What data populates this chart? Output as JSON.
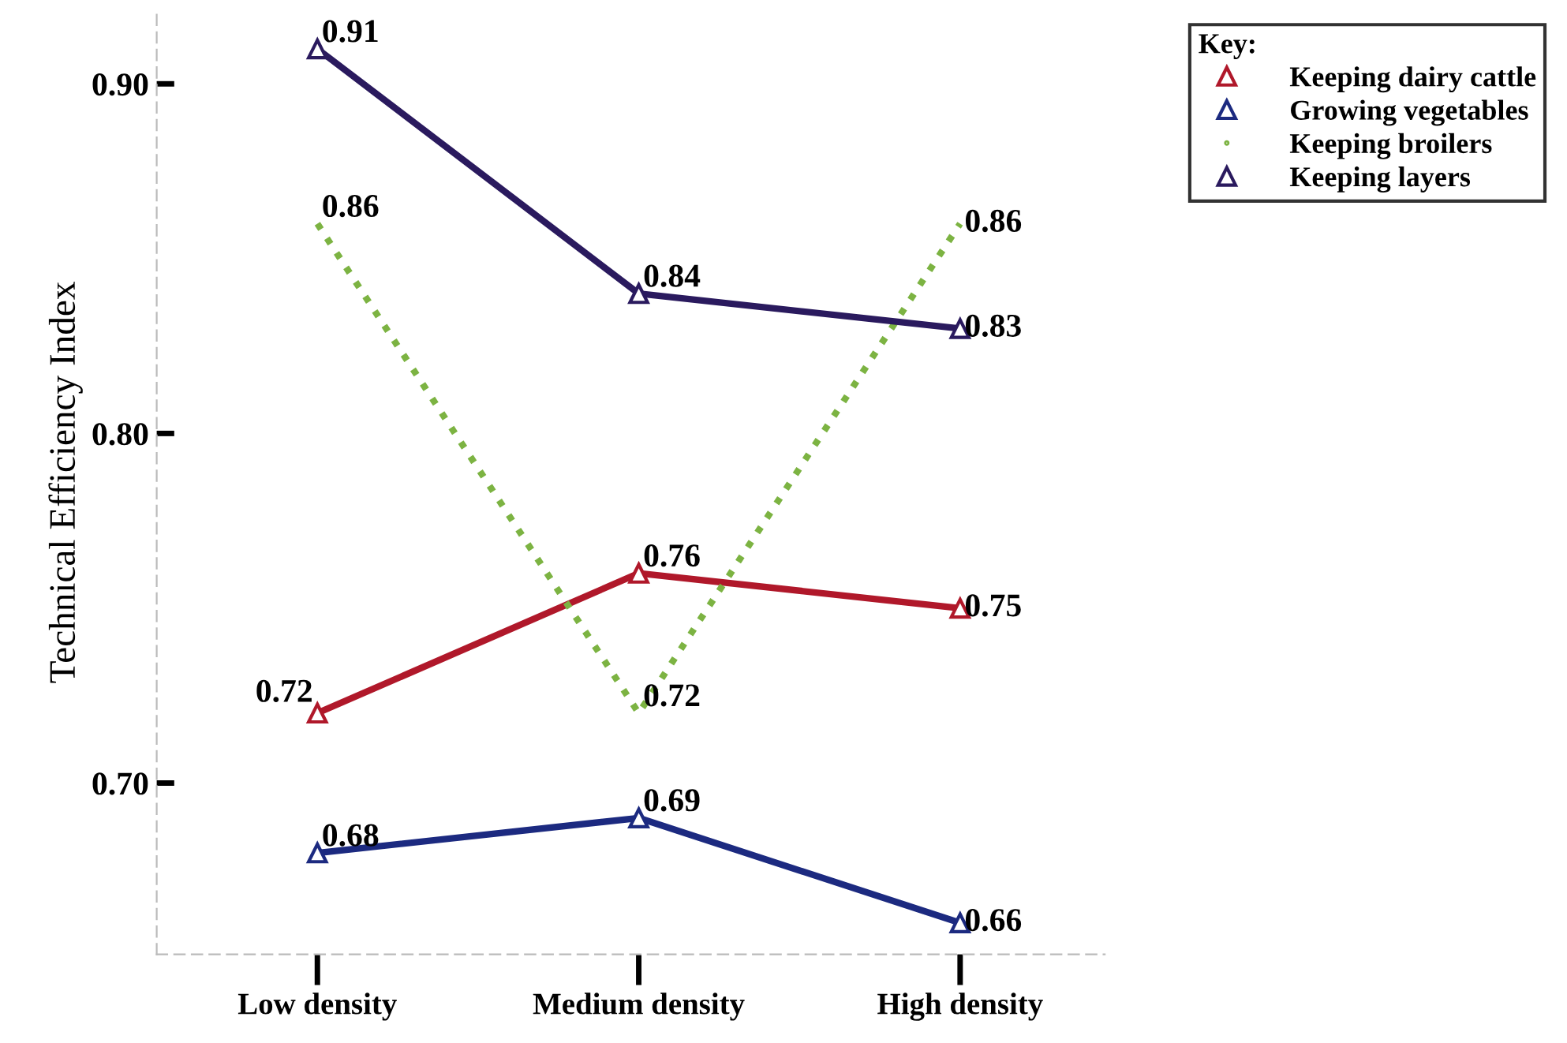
{
  "chart_data": {
    "type": "line",
    "ylabel": "Technical Efficiency Index",
    "legend_title": "Key:",
    "categories": [
      "Low density",
      "Medium density",
      "High density"
    ],
    "series": [
      {
        "name": "Keeping dairy cattle",
        "color": "#b0182a",
        "values": [
          0.72,
          0.76,
          0.75
        ],
        "marker": "triangle",
        "line_style": "solid"
      },
      {
        "name": "Growing vegetables",
        "color": "#1c2a80",
        "values": [
          0.68,
          0.69,
          0.66
        ],
        "marker": "triangle",
        "line_style": "solid"
      },
      {
        "name": "Keeping broilers",
        "color": "#7cb342",
        "values": [
          0.86,
          0.72,
          0.86
        ],
        "marker": "none",
        "line_style": "dotted"
      },
      {
        "name": "Keeping layers",
        "color": "#2a1a5e",
        "values": [
          0.91,
          0.84,
          0.83
        ],
        "marker": "triangle",
        "line_style": "solid"
      }
    ],
    "ylim": [
      0.651,
      0.921
    ],
    "yticks": [
      {
        "value": 0.7,
        "label": "0.70"
      },
      {
        "value": 0.8,
        "label": "0.80"
      },
      {
        "value": 0.9,
        "label": "0.90"
      }
    ],
    "data_labels": true,
    "legend": "top right",
    "grid": false
  }
}
